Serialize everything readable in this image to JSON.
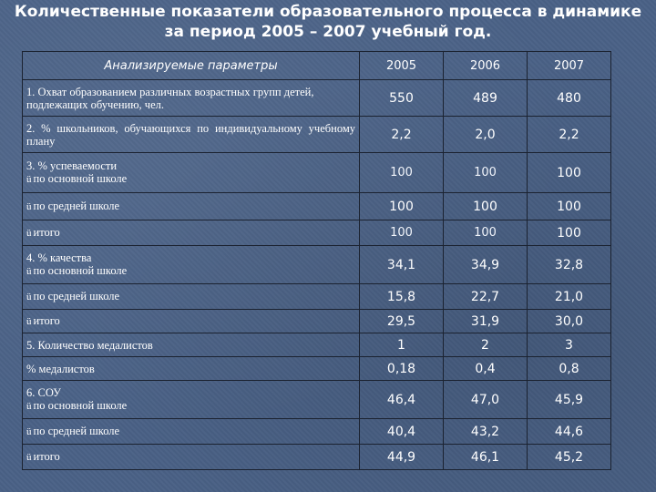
{
  "title": {
    "line1": "Количественные показатели образовательного процесса в динамике",
    "line2": "за период 2005 – 2007 учебный год."
  },
  "table": {
    "headers": [
      "Анализируемые параметры",
      "2005",
      "2006",
      "2007"
    ],
    "check_mark": "ü",
    "rows": [
      {
        "label": "1. Охват образованием различных возрастных групп детей, подлежащих обучению, чел.",
        "values": [
          "550",
          "489",
          "480"
        ]
      },
      {
        "label": "2. % школьников, обучающихся по индивидуальному учебному плану",
        "values": [
          "2,2",
          "2,0",
          "2,2"
        ]
      },
      {
        "label": "3. % успеваемости",
        "sublabel": "по основной школе",
        "values": [
          "100",
          "100",
          "100"
        ]
      },
      {
        "label": "по средней школе",
        "values": [
          "100",
          "100",
          "100"
        ]
      },
      {
        "label": "итого",
        "values": [
          "100",
          "100",
          "100"
        ]
      },
      {
        "label": "4. % качества",
        "sublabel": "по основной школе",
        "values": [
          "34,1",
          "34,9",
          "32,8"
        ]
      },
      {
        "label": "по средней школе",
        "values": [
          "15,8",
          "22,7",
          "21,0"
        ]
      },
      {
        "label": "итого",
        "values": [
          "29,5",
          "31,9",
          "30,0"
        ]
      },
      {
        "label": "5. Количество медалистов",
        "values": [
          "1",
          "2",
          "3"
        ]
      },
      {
        "label": "% медалистов",
        "values": [
          "0,18",
          "0,4",
          "0,8"
        ]
      },
      {
        "label": "6. СОУ",
        "sublabel": "по основной школе",
        "values": [
          "46,4",
          "47,0",
          "45,9"
        ]
      },
      {
        "label": "по средней школе",
        "values": [
          "40,4",
          "43,2",
          "44,6"
        ]
      },
      {
        "label": "итого",
        "values": [
          "44,9",
          "46,1",
          "45,2"
        ]
      }
    ]
  }
}
